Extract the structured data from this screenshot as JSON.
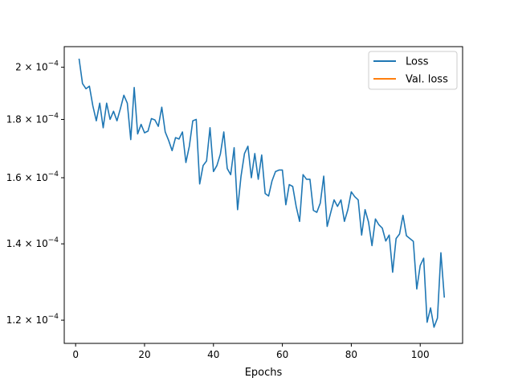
{
  "chart_data": {
    "type": "line",
    "xlabel": "Epochs",
    "ylabel": "",
    "yscale": "log",
    "xlim": [
      -3.3,
      112.3
    ],
    "ylim": [
      0.0001145,
      0.0002085
    ],
    "grid": false,
    "legend_position": "top-right",
    "x_ticks": [
      0,
      20,
      40,
      60,
      80,
      100
    ],
    "y_ticks": [
      {
        "value": 0.00012,
        "label_mantissa": "1.2 × 10",
        "label_exp": "−4"
      },
      {
        "value": 0.00014,
        "label_mantissa": "1.4 × 10",
        "label_exp": "−4"
      },
      {
        "value": 0.00016,
        "label_mantissa": "1.6 × 10",
        "label_exp": "−4"
      },
      {
        "value": 0.00018,
        "label_mantissa": "1.8 × 10",
        "label_exp": "−4"
      },
      {
        "value": 0.0002,
        "label_mantissa": "2 × 10",
        "label_exp": "−4"
      }
    ],
    "series": [
      {
        "name": "Loss",
        "color": "#1f77b4",
        "x": [
          1,
          2,
          3,
          4,
          5,
          6,
          7,
          8,
          9,
          10,
          11,
          12,
          13,
          14,
          15,
          16,
          17,
          18,
          19,
          20,
          21,
          22,
          23,
          24,
          25,
          26,
          27,
          28,
          29,
          30,
          31,
          32,
          33,
          34,
          35,
          36,
          37,
          38,
          39,
          40,
          41,
          42,
          43,
          44,
          45,
          46,
          47,
          48,
          49,
          50,
          51,
          52,
          53,
          54,
          55,
          56,
          57,
          58,
          59,
          60,
          61,
          62,
          63,
          64,
          65,
          66,
          67,
          68,
          69,
          70,
          71,
          72,
          73,
          74,
          75,
          76,
          77,
          78,
          79,
          80,
          81,
          82,
          83,
          84,
          85,
          86,
          87,
          88,
          89,
          90,
          91,
          92,
          93,
          94,
          95,
          96,
          97,
          98,
          99,
          100,
          101,
          102,
          103,
          104,
          105,
          106,
          107
        ],
        "values": [
          0.0002035,
          0.0001935,
          0.0001915,
          0.0001925,
          0.000185,
          0.0001795,
          0.000186,
          0.000177,
          0.000186,
          0.00018,
          0.000183,
          0.0001795,
          0.000184,
          0.000189,
          0.000186,
          0.0001728,
          0.000192,
          0.0001748,
          0.0001782,
          0.0001752,
          0.0001758,
          0.0001803,
          0.0001798,
          0.0001775,
          0.0001845,
          0.0001755,
          0.0001725,
          0.000169,
          0.0001735,
          0.000173,
          0.0001755,
          0.000165,
          0.0001705,
          0.0001795,
          0.00018,
          0.000158,
          0.000164,
          0.0001655,
          0.000177,
          0.000162,
          0.000164,
          0.0001678,
          0.0001755,
          0.000163,
          0.000161,
          0.00017,
          0.00015,
          0.0001605,
          0.000168,
          0.0001705,
          0.00016,
          0.000168,
          0.0001595,
          0.0001675,
          0.000155,
          0.0001542,
          0.000159,
          0.000162,
          0.0001625,
          0.0001625,
          0.0001515,
          0.0001578,
          0.0001572,
          0.000151,
          0.0001465,
          0.000161,
          0.0001595,
          0.0001595,
          0.0001498,
          0.0001492,
          0.000152,
          0.0001605,
          0.000145,
          0.000149,
          0.000153,
          0.000151,
          0.000153,
          0.0001465,
          0.00015,
          0.0001555,
          0.000154,
          0.000153,
          0.0001425,
          0.00015,
          0.0001463,
          0.0001395,
          0.0001472,
          0.0001455,
          0.0001445,
          0.0001408,
          0.0001425,
          0.0001322,
          0.0001415,
          0.0001428,
          0.0001483,
          0.0001423,
          0.0001415,
          0.0001407,
          0.0001278,
          0.000134,
          0.000136,
          0.0001195,
          0.000123,
          0.0001183,
          0.0001205,
          0.0001375,
          0.0001256
        ]
      },
      {
        "name": "Val. loss",
        "color": "#ff7f0e",
        "x": [],
        "values": []
      }
    ]
  }
}
